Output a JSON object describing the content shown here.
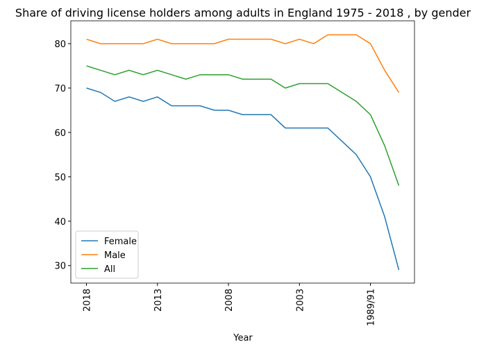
{
  "chart_data": {
    "type": "line",
    "title": "Share of driving license holders among adults in England 1975 - 2018 , by gender",
    "x_label": "Year",
    "categories": [
      "2018",
      null,
      null,
      null,
      null,
      "2013",
      null,
      null,
      null,
      null,
      "2008",
      null,
      null,
      null,
      null,
      "2003",
      null,
      null,
      null,
      null,
      "1989/91",
      null,
      null
    ],
    "series": [
      {
        "name": "Female",
        "color": "#1f77b4",
        "values": [
          70,
          69,
          67,
          68,
          67,
          68,
          66,
          66,
          66,
          65,
          65,
          64,
          64,
          64,
          61,
          61,
          61,
          61,
          58,
          55,
          50,
          41,
          29
        ]
      },
      {
        "name": "Male",
        "color": "#ff7f0e",
        "values": [
          81,
          80,
          80,
          80,
          80,
          81,
          80,
          80,
          80,
          80,
          81,
          81,
          81,
          81,
          80,
          81,
          80,
          82,
          82,
          82,
          80,
          74,
          69
        ]
      },
      {
        "name": "All",
        "color": "#2ca02c",
        "values": [
          75,
          74,
          73,
          74,
          73,
          74,
          73,
          72,
          73,
          73,
          73,
          72,
          72,
          72,
          70,
          71,
          71,
          71,
          69,
          67,
          64,
          57,
          48
        ]
      }
    ],
    "ylim": [
      26.05,
      85.15
    ],
    "yticks": [
      30,
      40,
      50,
      60,
      70,
      80
    ],
    "legend": "lower left",
    "grid": false
  }
}
